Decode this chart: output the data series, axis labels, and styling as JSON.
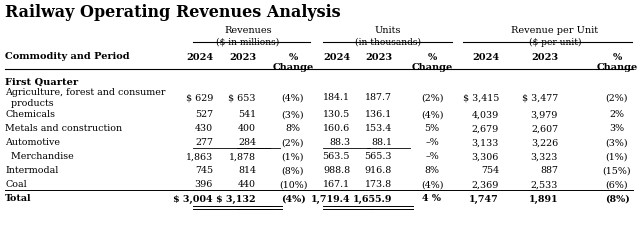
{
  "title": "Railway Operating Revenues Analysis",
  "group_labels": [
    "Revenues",
    "Units",
    "Revenue per Unit"
  ],
  "group_sublabels": [
    "($ in millions)",
    "(in thousands)",
    "($ per unit)"
  ],
  "col_header": [
    "Commodity and Period",
    "2024",
    "2023",
    "% Change",
    "2024",
    "2023",
    "% Change",
    "2024",
    "2023",
    "% Change"
  ],
  "section_header": "First Quarter",
  "rows": [
    [
      "Agriculture, forest and consumer\n  products",
      "$ 629",
      "$ 653",
      "(4%)",
      "184.1",
      "187.7",
      "(2%)",
      "$ 3,415",
      "$ 3,477",
      "(2%)",
      false,
      false
    ],
    [
      "Chemicals",
      "527",
      "541",
      "(3%)",
      "130.5",
      "136.1",
      "(4%)",
      "4,039",
      "3,979",
      "2%",
      false,
      false
    ],
    [
      "Metals and construction",
      "430",
      "400",
      "8%",
      "160.6",
      "153.4",
      "5%",
      "2,679",
      "2,607",
      "3%",
      false,
      false
    ],
    [
      "Automotive",
      "277",
      "284",
      "(2%)",
      "88.3",
      "88.1",
      "–%",
      "3,133",
      "3,226",
      "(3%)",
      true,
      false
    ],
    [
      "  Merchandise",
      "1,863",
      "1,878",
      "(1%)",
      "563.5",
      "565.3",
      "–%",
      "3,306",
      "3,323",
      "(1%)",
      false,
      false
    ],
    [
      "Intermodal",
      "745",
      "814",
      "(8%)",
      "988.8",
      "916.8",
      "8%",
      "754",
      "887",
      "(15%)",
      false,
      false
    ],
    [
      "Coal",
      "396",
      "440",
      "(10%)",
      "167.1",
      "173.8",
      "(4%)",
      "2,369",
      "2,533",
      "(6%)",
      false,
      false
    ],
    [
      "Total",
      "$ 3,004",
      "$ 3,132",
      "(4%)",
      "1,719.4",
      "1,655.9",
      "4 %",
      "1,747",
      "1,891",
      "(8%)",
      false,
      true
    ]
  ],
  "bg_color": "#ffffff",
  "text_color": "#000000",
  "title_fontsize": 11.5,
  "body_fontsize": 6.8,
  "header_fontsize": 7.0
}
